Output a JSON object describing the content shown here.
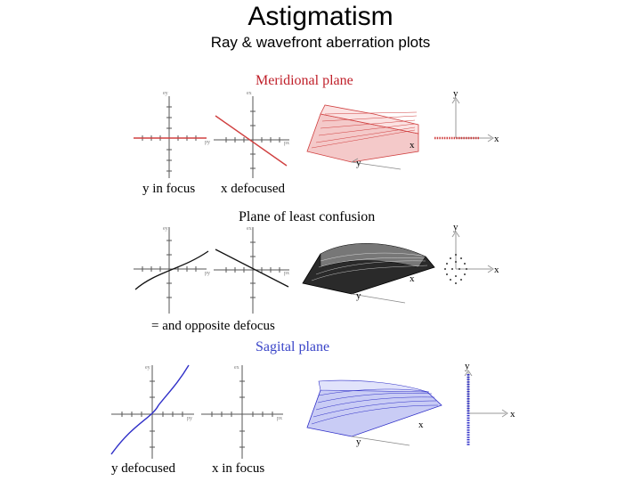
{
  "title": "Astigmatism",
  "subtitle": "Ray & wavefront aberration plots",
  "sections": {
    "meridional": {
      "heading": "Meridional plane",
      "color": "#c0202a",
      "captions": [
        "y in focus",
        "x defocused"
      ]
    },
    "least_confusion": {
      "heading": "Plane of least confusion",
      "color": "#000000",
      "captions": [
        "= and opposite defocus"
      ]
    },
    "sagital": {
      "heading": "Sagital plane",
      "color": "#3a45c8",
      "captions": [
        "y defocused",
        "x in focus"
      ]
    }
  },
  "axis_labels": {
    "x": "x",
    "y": "y",
    "ey": "ey",
    "ex": "ex",
    "py": "py",
    "px": "px"
  },
  "colors": {
    "meridional": "#d04040",
    "least": "#111111",
    "sagital": "#3030c8",
    "axis": "#555555"
  }
}
